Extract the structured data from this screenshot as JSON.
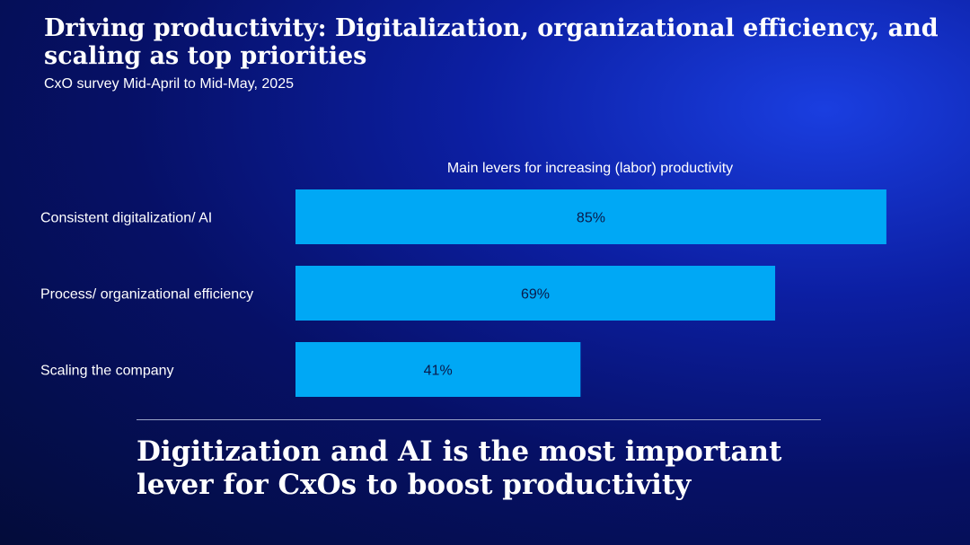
{
  "header": {
    "title": "Driving productivity: Digitalization, organizational efficiency, and scaling as top priorities",
    "subtitle": "CxO survey Mid-April to Mid-May, 2025"
  },
  "chart_data": {
    "type": "bar",
    "orientation": "horizontal",
    "title": "Main levers for increasing (labor) productivity",
    "categories": [
      "Consistent digitalization/ AI",
      "Process/ organizational efficiency",
      "Scaling the company"
    ],
    "values": [
      85,
      69,
      41
    ],
    "value_labels": [
      "85%",
      "69%",
      "41%"
    ],
    "unit": "%",
    "xlim": [
      0,
      100
    ],
    "grid": false,
    "bar_color": "#00a8f5"
  },
  "footer": {
    "conclusion": "Digitization and AI is the most important lever for CxOs to boost productivity"
  }
}
